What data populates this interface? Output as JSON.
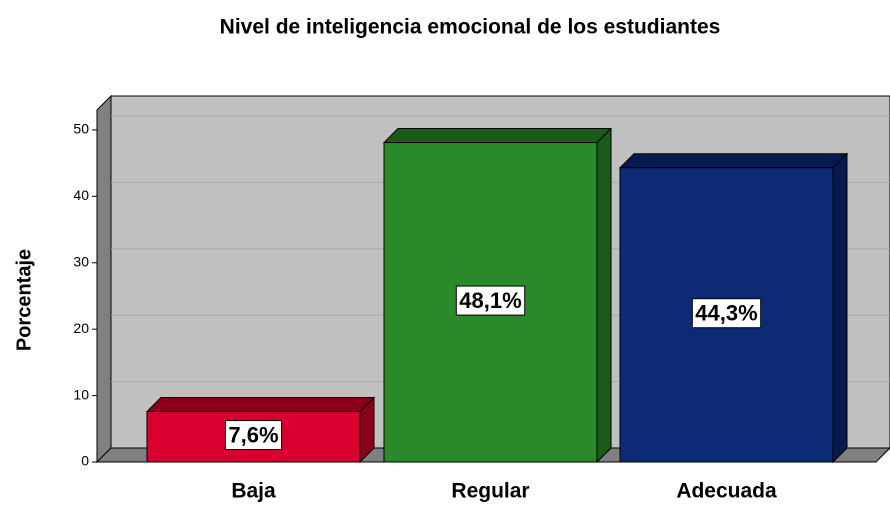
{
  "chart_data": {
    "type": "bar3d",
    "title": "Nivel de inteligencia emocional de los estudiantes",
    "ylabel": "Porcentaje",
    "categories": [
      "Baja",
      "Regular",
      "Adecuada"
    ],
    "values": [
      7.6,
      48.1,
      44.3
    ],
    "value_labels": [
      "7,6%",
      "48,1%",
      "44,3%"
    ],
    "colors": [
      "#d8002e",
      "#2a8a2a",
      "#0d2a75"
    ],
    "side_colors": [
      "#8a0019",
      "#1a5a1a",
      "#071a4f"
    ],
    "ylim": [
      0,
      53
    ],
    "yticks": [
      0,
      10,
      20,
      30,
      40,
      50
    ],
    "grid": true
  }
}
